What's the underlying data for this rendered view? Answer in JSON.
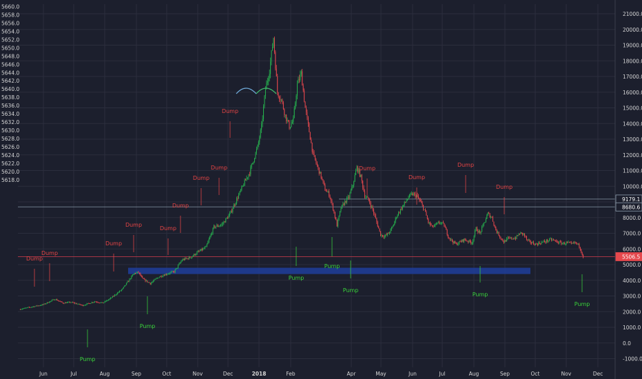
{
  "colors": {
    "background": "#1c1f2d",
    "grid": "#2b2e3d",
    "axis_text": "#d6d6d6",
    "up_candle": "#26b24e",
    "down_candle": "#e5484d",
    "dump_label": "#e64545",
    "pump_label": "#39d239",
    "support_zone": "#1f3c95",
    "last_price_tag": "#e5484d",
    "level_tag_bg": "#1c1f2d",
    "level_line": "#8fa0b0",
    "last_price_line": "#c0394a",
    "dome_left": "#6ea8d6",
    "dome_right": "#3fb86a"
  },
  "chart_data": {
    "type": "candlestick",
    "title": "",
    "x_axis": {
      "labels": [
        "Jun",
        "Jul",
        "Aug",
        "Sep",
        "Oct",
        "Nov",
        "Dec",
        "2018",
        "Feb",
        "Apr",
        "May",
        "Jun",
        "Jul",
        "Aug",
        "Sep",
        "Oct",
        "Nov",
        "Dec"
      ],
      "bold_labels": [
        "2018"
      ]
    },
    "left_axis": {
      "range": [
        5617.0,
        5660.5
      ],
      "ticks": [
        "5660.0",
        "5658.0",
        "5656.0",
        "5654.0",
        "5652.0",
        "5650.0",
        "5648.0",
        "5646.0",
        "5644.0",
        "5642.0",
        "5640.0",
        "5638.0",
        "5636.0",
        "5634.0",
        "5632.0",
        "5630.0",
        "5628.0",
        "5626.0",
        "5624.0",
        "5622.0",
        "5620.0",
        "5618.0"
      ]
    },
    "right_axis": {
      "range": [
        -1000,
        21000
      ],
      "ticks": [
        "21000.0",
        "20000.0",
        "19000.0",
        "18000.0",
        "17000.0",
        "16000.0",
        "15000.0",
        "14000.0",
        "13000.0",
        "12000.0",
        "11000.0",
        "10000.0",
        "9000.0",
        "8000.0",
        "7000.0",
        "6000.0",
        "5000.0",
        "4000.0",
        "3000.0",
        "2000.0",
        "1000.0",
        "0.0",
        "-1000.0"
      ]
    },
    "price_path": [
      [
        0,
        2150
      ],
      [
        6,
        2450
      ],
      [
        9,
        2800
      ],
      [
        11,
        2550
      ],
      [
        13,
        2600
      ],
      [
        16,
        2400
      ],
      [
        19,
        2650
      ],
      [
        21,
        2550
      ],
      [
        23,
        2850
      ],
      [
        26,
        3450
      ],
      [
        28,
        4150
      ],
      [
        29,
        4450
      ],
      [
        30,
        4500
      ],
      [
        31,
        4100
      ],
      [
        33,
        3800
      ],
      [
        35,
        4200
      ],
      [
        37,
        4400
      ],
      [
        39,
        4550
      ],
      [
        41,
        5300
      ],
      [
        43,
        5450
      ],
      [
        45,
        5800
      ],
      [
        47,
        6100
      ],
      [
        48,
        6750
      ],
      [
        49,
        7400
      ],
      [
        51,
        7550
      ],
      [
        53,
        8200
      ],
      [
        55,
        9300
      ],
      [
        57,
        10400
      ],
      [
        58,
        10900
      ],
      [
        60,
        12500
      ],
      [
        61,
        13800
      ],
      [
        62,
        16200
      ],
      [
        63,
        17400
      ],
      [
        64,
        19500
      ],
      [
        65,
        16000
      ],
      [
        66,
        15500
      ],
      [
        67,
        14500
      ],
      [
        68,
        13800
      ],
      [
        69,
        14200
      ],
      [
        70,
        16500
      ],
      [
        71,
        17200
      ],
      [
        72,
        15000
      ],
      [
        73,
        13500
      ],
      [
        74,
        12000
      ],
      [
        75,
        11300
      ],
      [
        76,
        10600
      ],
      [
        77,
        9800
      ],
      [
        78,
        9500
      ],
      [
        79,
        8600
      ],
      [
        80,
        7500
      ],
      [
        81,
        8600
      ],
      [
        82,
        9000
      ],
      [
        83,
        9300
      ],
      [
        84,
        10100
      ],
      [
        85,
        11200
      ],
      [
        86,
        10600
      ],
      [
        87,
        9400
      ],
      [
        88,
        9100
      ],
      [
        89,
        8500
      ],
      [
        90,
        7700
      ],
      [
        91,
        6900
      ],
      [
        92,
        6800
      ],
      [
        93,
        7000
      ],
      [
        94,
        7400
      ],
      [
        95,
        8100
      ],
      [
        97,
        8900
      ],
      [
        98,
        9300
      ],
      [
        99,
        9500
      ],
      [
        100,
        9400
      ],
      [
        101,
        9000
      ],
      [
        102,
        8500
      ],
      [
        103,
        7700
      ],
      [
        104,
        7400
      ],
      [
        105,
        7550
      ],
      [
        106,
        7700
      ],
      [
        107,
        7500
      ],
      [
        108,
        6800
      ],
      [
        109,
        6500
      ],
      [
        110,
        6300
      ],
      [
        112,
        6600
      ],
      [
        114,
        6400
      ],
      [
        115,
        7300
      ],
      [
        116,
        7000
      ],
      [
        118,
        8250
      ],
      [
        119,
        8000
      ],
      [
        120,
        7200
      ],
      [
        121,
        6800
      ],
      [
        122,
        6450
      ],
      [
        123,
        6650
      ],
      [
        125,
        6700
      ],
      [
        126,
        7000
      ],
      [
        127,
        6950
      ],
      [
        128,
        6500
      ],
      [
        129,
        6400
      ],
      [
        130,
        6300
      ],
      [
        132,
        6450
      ],
      [
        134,
        6600
      ],
      [
        135,
        6500
      ],
      [
        136,
        6400
      ],
      [
        137,
        6350
      ],
      [
        138,
        6400
      ],
      [
        139,
        6300
      ],
      [
        140,
        6400
      ],
      [
        141,
        6200
      ],
      [
        142,
        5500
      ]
    ],
    "annotations": {
      "dump_labels": [
        "Dump",
        "Dump",
        "Dump",
        "Dump",
        "Dump",
        "Dump",
        "Dump",
        "Dump",
        "Dump",
        "Dump",
        "Dump",
        "Dump",
        "Dump",
        "Dump"
      ],
      "pump_labels": [
        "Pump",
        "Pump",
        "Pump",
        "Pump",
        "Pump",
        "Pump",
        "Pump"
      ]
    },
    "price_tags": {
      "level_upper": "9179.1",
      "level_lower": "8680.6",
      "last_price": "5506.5"
    },
    "support_zone": {
      "low": 4400,
      "high": 4800
    },
    "grid": true,
    "legend": "none"
  }
}
